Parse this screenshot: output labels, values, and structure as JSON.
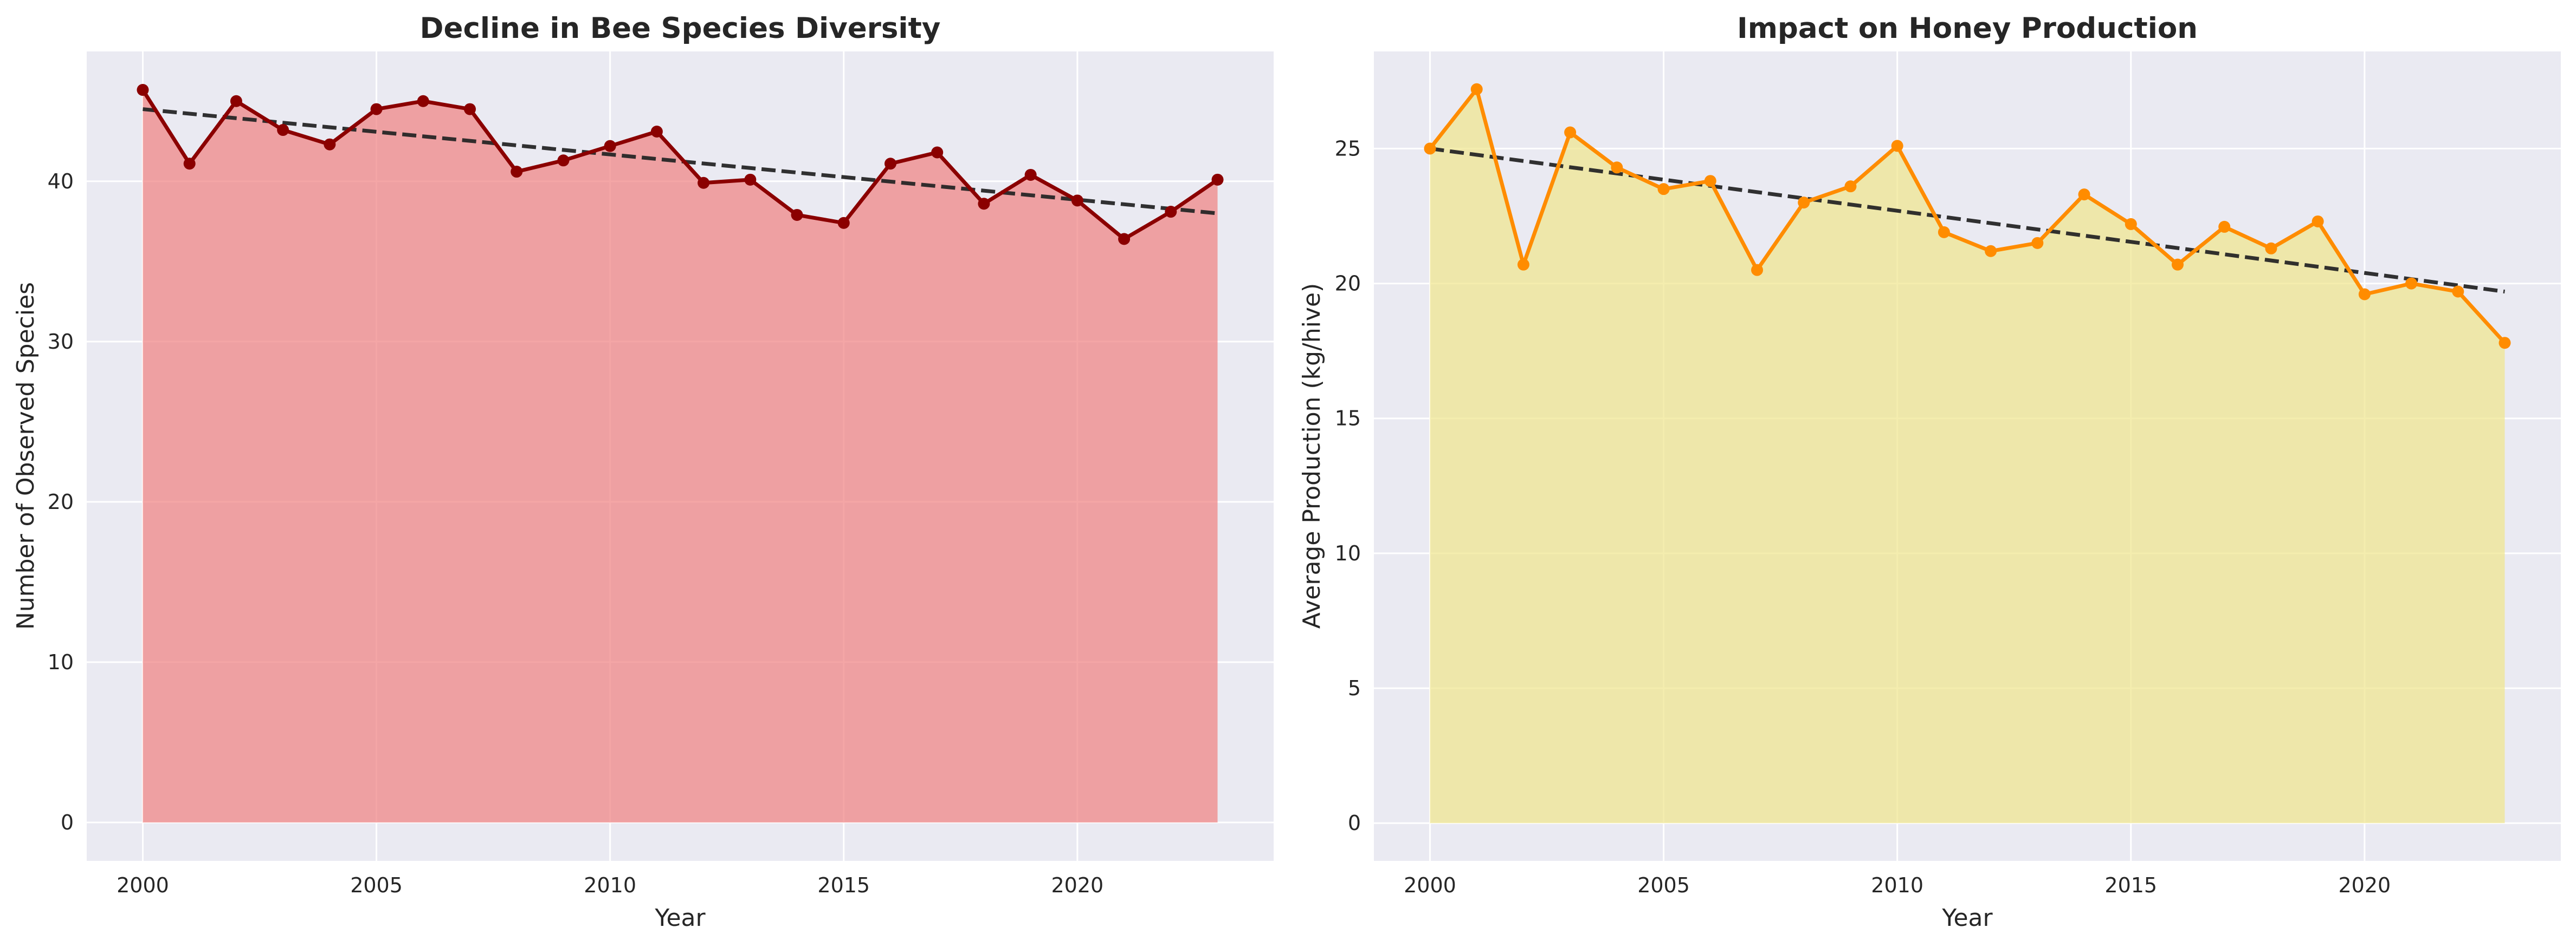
{
  "colors": {
    "plot_bg": "#eaeaf2",
    "grid": "#ffffff",
    "trend": "#262626"
  },
  "chart_data": [
    {
      "type": "area",
      "title": "Decline in Bee Species Diversity",
      "xlabel": "Year",
      "ylabel": "Number of Observed Species",
      "xlim": [
        1998.8,
        2024.2
      ],
      "ylim": [
        -2.4,
        48.1
      ],
      "xticks": [
        2000,
        2005,
        2010,
        2015,
        2020
      ],
      "yticks": [
        0,
        10,
        20,
        30,
        40
      ],
      "grid": true,
      "x": [
        2000,
        2001,
        2002,
        2003,
        2004,
        2005,
        2006,
        2007,
        2008,
        2009,
        2010,
        2011,
        2012,
        2013,
        2014,
        2015,
        2016,
        2017,
        2018,
        2019,
        2020,
        2021,
        2022,
        2023
      ],
      "series": [
        {
          "values": [
            45.7,
            41.1,
            45.0,
            43.2,
            42.3,
            44.5,
            45.0,
            44.5,
            40.6,
            41.3,
            42.2,
            43.1,
            39.9,
            40.1,
            37.9,
            37.4,
            41.1,
            41.8,
            38.6,
            40.4,
            38.8,
            36.4,
            38.1,
            40.1
          ],
          "line_color": "#8b0000",
          "fill_color": "#f08080",
          "fill_opacity": 0.7,
          "marker": "circle"
        }
      ],
      "trend": {
        "start": 44.5,
        "end": 38.0,
        "style": "dashed"
      }
    },
    {
      "type": "area",
      "title": "Impact on Honey Production",
      "xlabel": "Year",
      "ylabel": "Average Production (kg/hive)",
      "xlim": [
        1998.8,
        2024.2
      ],
      "ylim": [
        -1.4,
        28.6
      ],
      "xticks": [
        2000,
        2005,
        2010,
        2015,
        2020
      ],
      "yticks": [
        0,
        5,
        10,
        15,
        20,
        25
      ],
      "grid": true,
      "x": [
        2000,
        2001,
        2002,
        2003,
        2004,
        2005,
        2006,
        2007,
        2008,
        2009,
        2010,
        2011,
        2012,
        2013,
        2014,
        2015,
        2016,
        2017,
        2018,
        2019,
        2020,
        2021,
        2022,
        2023
      ],
      "series": [
        {
          "values": [
            25.0,
            27.2,
            20.7,
            25.6,
            24.3,
            23.5,
            23.8,
            20.5,
            23.0,
            23.6,
            25.1,
            21.9,
            21.2,
            21.5,
            23.3,
            22.2,
            20.7,
            22.1,
            21.3,
            22.3,
            19.6,
            20.0,
            19.7,
            17.8
          ],
          "line_color": "#ff8c00",
          "fill_color": "#f0e68c",
          "fill_opacity": 0.7,
          "marker": "circle"
        }
      ],
      "trend": {
        "start": 25.0,
        "end": 19.7,
        "style": "dashed"
      }
    }
  ]
}
